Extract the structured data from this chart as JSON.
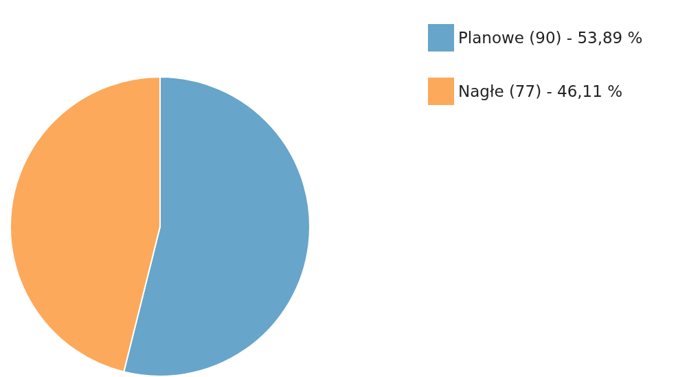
{
  "chart_data": {
    "type": "pie",
    "categories": [
      "Planowe (90) - 53,89 %",
      "Nagłe (77) - 46,11 %"
    ],
    "values": [
      90,
      77
    ],
    "colors": [
      "#67a5cb",
      "#fca95b"
    ],
    "legend": "top right"
  }
}
